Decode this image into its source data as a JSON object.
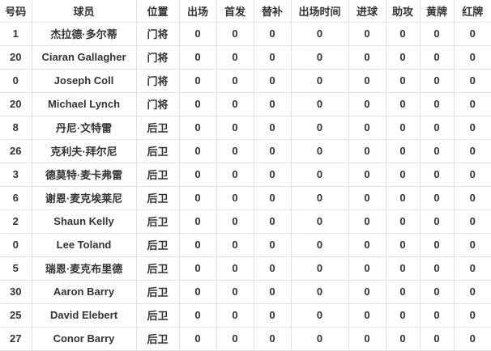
{
  "table": {
    "columns": [
      {
        "key": "number",
        "label": "号码"
      },
      {
        "key": "player",
        "label": "球员"
      },
      {
        "key": "position",
        "label": "位置"
      },
      {
        "key": "appearances",
        "label": "出场"
      },
      {
        "key": "starts",
        "label": "首发"
      },
      {
        "key": "substitute",
        "label": "替补"
      },
      {
        "key": "minutes",
        "label": "出场时间"
      },
      {
        "key": "goals",
        "label": "进球"
      },
      {
        "key": "assists",
        "label": "助攻"
      },
      {
        "key": "yellow-cards",
        "label": "黄牌"
      },
      {
        "key": "red-cards",
        "label": "红牌"
      }
    ],
    "rows": [
      [
        "1",
        "杰拉德·多尔蒂",
        "门将",
        "0",
        "0",
        "0",
        "0",
        "0",
        "0",
        "0",
        "0"
      ],
      [
        "20",
        "Ciaran Gallagher",
        "门将",
        "0",
        "0",
        "0",
        "0",
        "0",
        "0",
        "0",
        "0"
      ],
      [
        "0",
        "Joseph Coll",
        "门将",
        "0",
        "0",
        "0",
        "0",
        "0",
        "0",
        "0",
        "0"
      ],
      [
        "20",
        "Michael Lynch",
        "门将",
        "0",
        "0",
        "0",
        "0",
        "0",
        "0",
        "0",
        "0"
      ],
      [
        "8",
        "丹尼·文特雷",
        "后卫",
        "0",
        "0",
        "0",
        "0",
        "0",
        "0",
        "0",
        "0"
      ],
      [
        "26",
        "克利夫·拜尔尼",
        "后卫",
        "0",
        "0",
        "0",
        "0",
        "0",
        "0",
        "0",
        "0"
      ],
      [
        "3",
        "德莫特·麦卡弗雷",
        "后卫",
        "0",
        "0",
        "0",
        "0",
        "0",
        "0",
        "0",
        "0"
      ],
      [
        "6",
        "谢恩·麦克埃莱尼",
        "后卫",
        "0",
        "0",
        "0",
        "0",
        "0",
        "0",
        "0",
        "0"
      ],
      [
        "2",
        "Shaun Kelly",
        "后卫",
        "0",
        "0",
        "0",
        "0",
        "0",
        "0",
        "0",
        "0"
      ],
      [
        "0",
        "Lee Toland",
        "后卫",
        "0",
        "0",
        "0",
        "0",
        "0",
        "0",
        "0",
        "0"
      ],
      [
        "5",
        "瑞恩·麦克布里德",
        "后卫",
        "0",
        "0",
        "0",
        "0",
        "0",
        "0",
        "0",
        "0"
      ],
      [
        "30",
        "Aaron Barry",
        "后卫",
        "0",
        "0",
        "0",
        "0",
        "0",
        "0",
        "0",
        "0"
      ],
      [
        "25",
        "David Elebert",
        "后卫",
        "0",
        "0",
        "0",
        "0",
        "0",
        "0",
        "0",
        "0"
      ],
      [
        "27",
        "Conor Barry",
        "后卫",
        "0",
        "0",
        "0",
        "0",
        "0",
        "0",
        "0",
        "0"
      ]
    ],
    "colors": {
      "background": "#ffffff",
      "grid_border": "#e2e2e2",
      "text": "#333333"
    }
  }
}
